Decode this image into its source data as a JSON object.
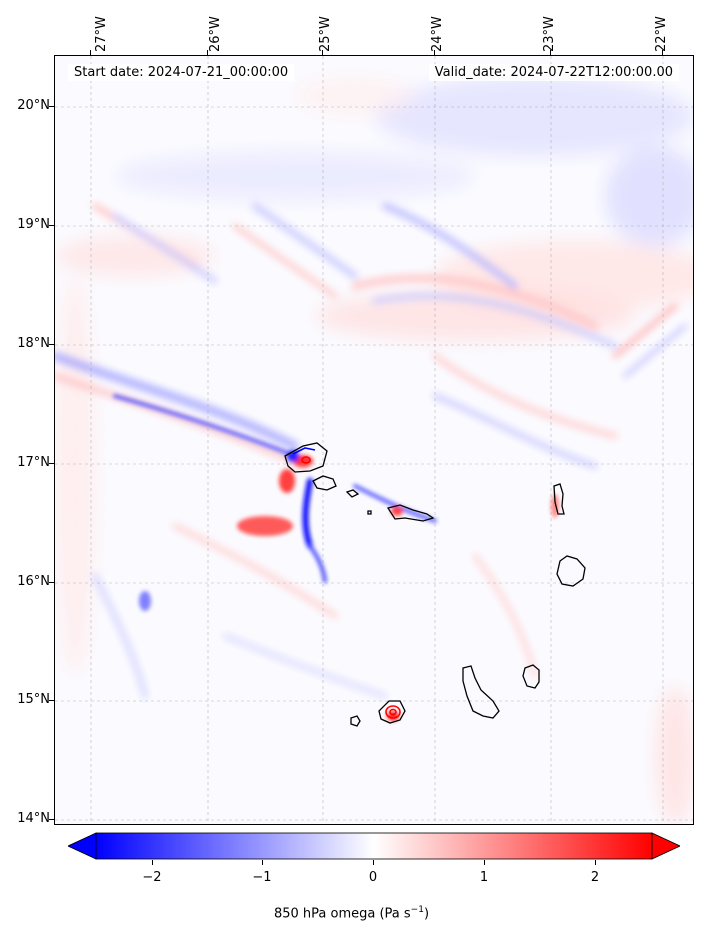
{
  "start_label": "Start date: 2024-07-21_00:00:00",
  "valid_label": "Valid_date: 2024-07-22T12:00:00.00",
  "longitude_labels": [
    "27°W",
    "26°W",
    "25°W",
    "24°W",
    "23°W",
    "22°W"
  ],
  "latitude_labels": [
    "20°N",
    "19°N",
    "18°N",
    "17°N",
    "16°N",
    "15°N",
    "14°N"
  ],
  "colorbar": {
    "label_prefix": "850 hPa omega (Pa s",
    "label_sup": "−1",
    "label_suffix": ")",
    "ticks": [
      "−2",
      "−1",
      "0",
      "1",
      "2"
    ],
    "range": [
      -2.5,
      2.5
    ],
    "extend": "both",
    "colormap": "bwr",
    "low_color": "#0000ff",
    "mid_color": "#ffffff",
    "high_color": "#ff0000"
  },
  "map": {
    "projection": "PlateCarree",
    "lon_range": [
      -27.3,
      -21.8
    ],
    "lat_range": [
      13.95,
      20.5
    ],
    "gridlines": true,
    "gridline_style": "dashed",
    "coastline_color": "#000000",
    "islands": [
      "Santo Antão",
      "São Vicente",
      "Santa Luzia",
      "São Nicolau",
      "Sal",
      "Boa Vista",
      "Maio",
      "Santiago",
      "Fogo",
      "Brava"
    ]
  }
}
